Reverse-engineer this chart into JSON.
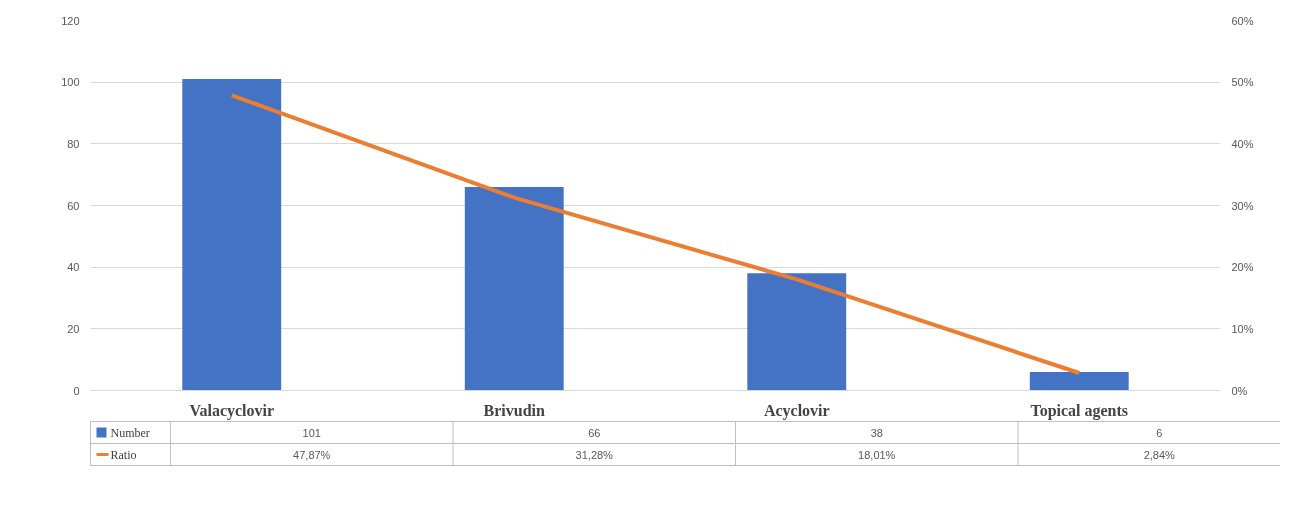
{
  "chart_data": {
    "type": "bar",
    "categories": [
      "Valacyclovir",
      "Brivudin",
      "Acyclovir",
      "Topical agents"
    ],
    "series": [
      {
        "name": "Number",
        "color": "#4472c4",
        "values": [
          101,
          66,
          38,
          6
        ],
        "value_labels": [
          "101",
          "66",
          "38",
          "6"
        ]
      },
      {
        "name": "Ratio",
        "type": "line",
        "axis": "y2",
        "color": "#ed7d31",
        "values": [
          47.87,
          31.28,
          18.01,
          2.84
        ],
        "value_labels": [
          "47,87%",
          "31,28%",
          "18,01%",
          "2,84%"
        ]
      }
    ],
    "ylim": [
      0,
      120
    ],
    "yticks": [
      0,
      20,
      40,
      60,
      80,
      100,
      120
    ],
    "y2lim": [
      0,
      60
    ],
    "y2ticks": [
      {
        "value": 0,
        "label": "0%"
      },
      {
        "value": 10,
        "label": "10%"
      },
      {
        "value": 20,
        "label": "20%"
      },
      {
        "value": 30,
        "label": "30%"
      },
      {
        "value": 40,
        "label": "40%"
      },
      {
        "value": 50,
        "label": "50%"
      },
      {
        "value": 60,
        "label": "60%"
      }
    ],
    "grid": "y",
    "legend": "bottom",
    "marker": "none",
    "line_style": "solid"
  }
}
